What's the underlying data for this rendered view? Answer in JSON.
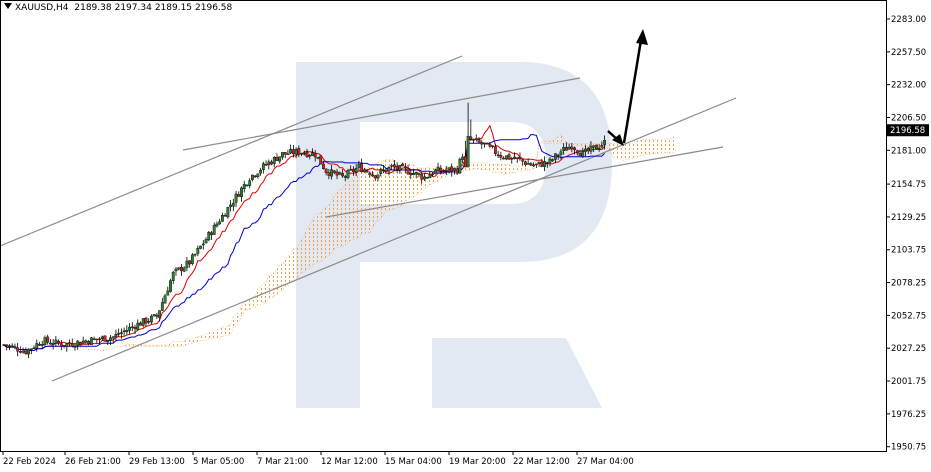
{
  "header": {
    "symbol": "XAUUSD,H4",
    "open": "2189.38",
    "high": "2197.34",
    "low": "2189.15",
    "close": "2196.58"
  },
  "chart_data": {
    "type": "candlestick",
    "symbol": "XAUUSD",
    "timeframe": "H4",
    "y_ticks": [
      "2283.00",
      "2257.50",
      "2232.00",
      "2206.50",
      "2181.00",
      "2154.75",
      "2129.25",
      "2103.75",
      "2078.25",
      "2052.75",
      "2027.25",
      "2001.75",
      "1976.25",
      "1950.75"
    ],
    "x_ticks": [
      "22 Feb 2024",
      "26 Feb 21:00",
      "29 Feb 13:00",
      "5 Mar 05:00",
      "7 Mar 21:00",
      "12 Mar 12:00",
      "15 Mar 04:00",
      "19 Mar 20:00",
      "22 Mar 12:00",
      "27 Mar 04:00"
    ],
    "current_price": "2196.58",
    "ylim": [
      1950.75,
      2283.0
    ],
    "colors": {
      "bull": "#2e7d32",
      "bear": "#c62828",
      "tenkan": "#e00000",
      "kijun": "#0000cc",
      "cloud": "#f0a050",
      "trendline": "#8a8a8a",
      "forecast": "#000000",
      "watermark": "#e3e9f2"
    },
    "indicators": [
      "Ichimoku Kinko Hyo"
    ],
    "watermark": "R-logo"
  }
}
